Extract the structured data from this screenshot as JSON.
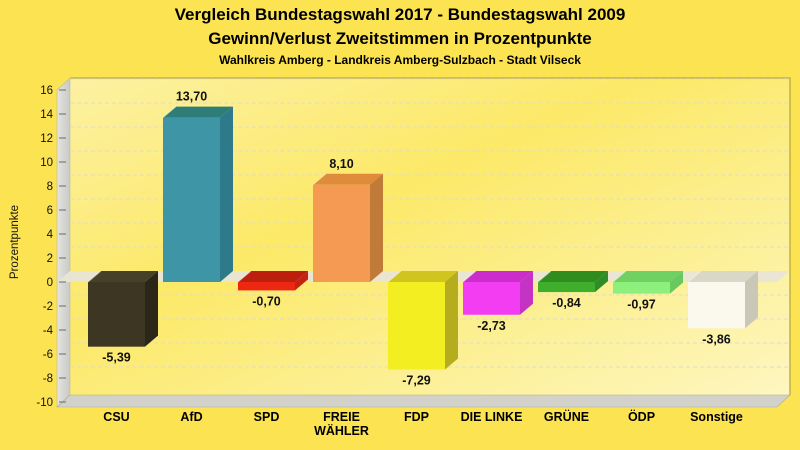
{
  "header": {
    "title_line1": "Vergleich Bundestagswahl 2017 - Bundestagswahl 2009",
    "title_line2": "Gewinn/Verlust Zweitstimmen in Prozentpunkte",
    "subtitle": "Wahlkreis Amberg - Landkreis Amberg-Sulzbach - Stadt Vilseck"
  },
  "chart_data": {
    "type": "bar",
    "style": "3d-column",
    "title": "Vergleich Bundestagswahl 2017 - Bundestagswahl 2009",
    "subtitle": "Gewinn/Verlust Zweitstimmen in Prozentpunkte",
    "region_note": "Wahlkreis Amberg - Landkreis Amberg-Sulzbach - Stadt Vilseck",
    "xlabel": "",
    "ylabel": "Prozentpunkte",
    "ylim": [
      -10,
      16
    ],
    "ytick_step": 2,
    "yticks": [
      16,
      14,
      12,
      10,
      8,
      6,
      4,
      2,
      0,
      -2,
      -4,
      -6,
      -8,
      -10
    ],
    "grid": "dashed-horizontal",
    "legend": "none",
    "background_color": "#FBE351",
    "plot_gradient": [
      "#FCF1A2",
      "#FCE968",
      "#FDF6C0"
    ],
    "wall_color": "#D8D8D4",
    "floor_color": "#D2D2CA",
    "zero_plane_color": "#E9E5D6",
    "gridline_color": "#DFDCC9",
    "plot_border_color": "#C2B245",
    "text_color": "#111111",
    "categories": [
      "CSU",
      "AfD",
      "SPD",
      "FREIE\nWÄHLER",
      "FDP",
      "DIE LINKE",
      "GRÜNE",
      "ÖDP",
      "Sonstige"
    ],
    "values": [
      -5.39,
      13.7,
      -0.7,
      8.1,
      -7.29,
      -2.73,
      -0.84,
      -0.97,
      -3.86
    ],
    "value_labels": [
      "-5,39",
      "13,70",
      "-0,70",
      "8,10",
      "-7,29",
      "-2,73",
      "-0,84",
      "-0,97",
      "-3,86"
    ],
    "bars": [
      {
        "id": "csu",
        "party": "CSU",
        "front": "#3C3623",
        "top": "#474029",
        "side": "#2B2718"
      },
      {
        "id": "afd",
        "party": "AfD",
        "front": "#3D95A5",
        "top": "#2F7D79",
        "side": "#2E7A8A"
      },
      {
        "id": "spd",
        "party": "SPD",
        "front": "#EE2712",
        "top": "#BC1F0E",
        "side": "#C52211"
      },
      {
        "id": "freie-waehler",
        "party": "FREIE WÄHLER",
        "front": "#F59A52",
        "top": "#DE8B3C",
        "side": "#C07B38"
      },
      {
        "id": "fdp",
        "party": "FDP",
        "front": "#F2EE22",
        "top": "#CFC51E",
        "side": "#B5AC1E"
      },
      {
        "id": "die-linke",
        "party": "DIE LINKE",
        "front": "#F23DF2",
        "top": "#CB2CCB",
        "side": "#C433C4"
      },
      {
        "id": "gruene",
        "party": "GRÜNE",
        "front": "#3FAE2C",
        "top": "#2F8C1F",
        "side": "#2F8C26"
      },
      {
        "id": "oedp",
        "party": "ÖDP",
        "front": "#8DF07D",
        "top": "#6FD162",
        "side": "#69C95E"
      },
      {
        "id": "sonstige",
        "party": "Sonstige",
        "front": "#FBF9ED",
        "top": "#D9D7C6",
        "side": "#C9C7B6"
      }
    ]
  }
}
